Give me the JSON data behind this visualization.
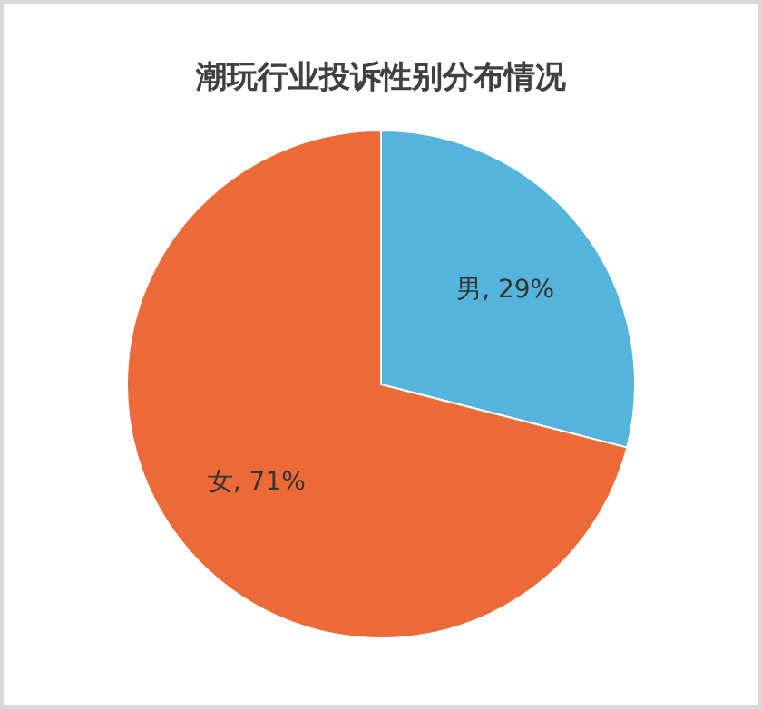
{
  "chart_data": {
    "type": "pie",
    "title": "潮玩行业投诉性别分布情况",
    "categories": [
      "男",
      "女"
    ],
    "values": [
      29,
      71
    ],
    "value_labels": [
      ", 29%",
      ", 71%"
    ],
    "colors": [
      "#55b4dc",
      "#ec6a38"
    ]
  }
}
